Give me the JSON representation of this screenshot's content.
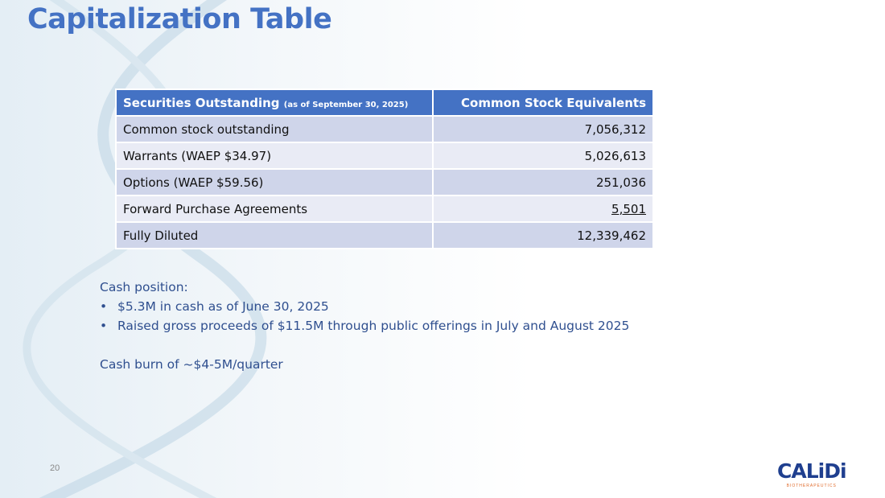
{
  "title": "Capitalization Table",
  "table": {
    "header_left": "Securities Outstanding",
    "header_left_note": "(as of September 30, 2025)",
    "header_right": "Common Stock Equivalents",
    "rows": [
      {
        "label": "Common stock outstanding",
        "value": "7,056,312"
      },
      {
        "label": "Warrants (WAEP $34.97)",
        "value": "5,026,613"
      },
      {
        "label": "Options (WAEP $59.56)",
        "value": "251,036"
      },
      {
        "label": "Forward Purchase Agreements",
        "value": "5,501"
      },
      {
        "label": "Fully Diluted",
        "value": "12,339,462"
      }
    ]
  },
  "notes": {
    "heading": "Cash position:",
    "bullets": [
      "$5.3M in cash as of June 30, 2025",
      "Raised gross proceeds of $11.5M through public offerings in July and August 2025"
    ],
    "burn": "Cash burn of ~$4-5M/quarter"
  },
  "page_number": "20",
  "logo": {
    "name": "CALiDi",
    "tagline": "BIOTHERAPEUTICS"
  },
  "colors": {
    "accent": "#4472c4",
    "row_dark": "#cfd5ea",
    "row_light": "#e9ebf5"
  }
}
